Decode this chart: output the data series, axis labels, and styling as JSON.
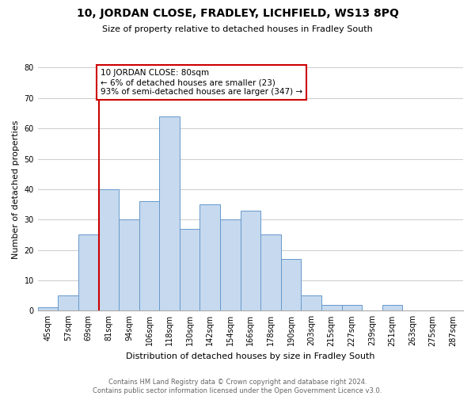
{
  "title": "10, JORDAN CLOSE, FRADLEY, LICHFIELD, WS13 8PQ",
  "subtitle": "Size of property relative to detached houses in Fradley South",
  "xlabel": "Distribution of detached houses by size in Fradley South",
  "ylabel": "Number of detached properties",
  "bar_labels": [
    "45sqm",
    "57sqm",
    "69sqm",
    "81sqm",
    "94sqm",
    "106sqm",
    "118sqm",
    "130sqm",
    "142sqm",
    "154sqm",
    "166sqm",
    "178sqm",
    "190sqm",
    "203sqm",
    "215sqm",
    "227sqm",
    "239sqm",
    "251sqm",
    "263sqm",
    "275sqm",
    "287sqm"
  ],
  "bar_heights": [
    1,
    5,
    25,
    40,
    30,
    36,
    64,
    27,
    35,
    30,
    33,
    25,
    17,
    5,
    2,
    2,
    0,
    2,
    0,
    0,
    0
  ],
  "bar_color": "#c6d9ee",
  "bar_edge_color": "#6699cc",
  "vline_x_index": 3,
  "vline_color": "#cc0000",
  "annotation_text": "10 JORDAN CLOSE: 80sqm\n← 6% of detached houses are smaller (23)\n93% of semi-detached houses are larger (347) →",
  "annotation_box_color": "#ffffff",
  "annotation_box_edge": "#cc0000",
  "ylim": [
    0,
    80
  ],
  "yticks": [
    0,
    10,
    20,
    30,
    40,
    50,
    60,
    70,
    80
  ],
  "footer_line1": "Contains HM Land Registry data © Crown copyright and database right 2024.",
  "footer_line2": "Contains public sector information licensed under the Open Government Licence v3.0.",
  "background_color": "#ffffff",
  "grid_color": "#cccccc",
  "title_fontsize": 10,
  "subtitle_fontsize": 8,
  "xlabel_fontsize": 8,
  "ylabel_fontsize": 8,
  "tick_fontsize": 7,
  "footer_fontsize": 6,
  "annotation_fontsize": 7.5
}
